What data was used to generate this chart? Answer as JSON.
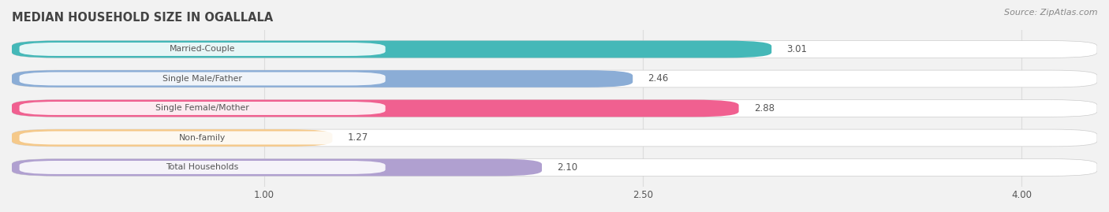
{
  "title": "MEDIAN HOUSEHOLD SIZE IN OGALLALA",
  "source": "Source: ZipAtlas.com",
  "categories": [
    "Married-Couple",
    "Single Male/Father",
    "Single Female/Mother",
    "Non-family",
    "Total Households"
  ],
  "values": [
    3.01,
    2.46,
    2.88,
    1.27,
    2.1
  ],
  "bar_colors": [
    "#45b8b8",
    "#8badd6",
    "#f06090",
    "#f5c98a",
    "#b0a0d0"
  ],
  "label_pill_colors": [
    "#e8f8f8",
    "#e8eef8",
    "#fde8f0",
    "#fdf0e0",
    "#eeeaf8"
  ],
  "xlim_min": 0.0,
  "xlim_max": 4.3,
  "xticks": [
    1.0,
    2.5,
    4.0
  ],
  "background_color": "#f2f2f2",
  "bar_bg_color": "#ffffff",
  "grid_color": "#dddddd",
  "title_color": "#444444",
  "source_color": "#888888",
  "label_color": "#555555",
  "value_color_inside": "#ffffff",
  "value_color_outside": "#555555",
  "bar_height": 0.58,
  "bar_spacing": 1.0
}
